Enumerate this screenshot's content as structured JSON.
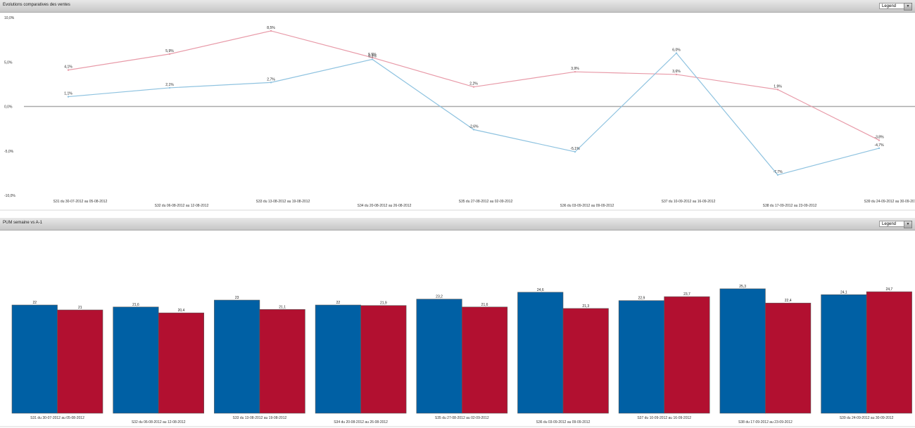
{
  "panels": [
    {
      "title": "Evolutions comparatives des ventes",
      "legend_label": "Legend"
    },
    {
      "title": "PUM semaine vs A-1",
      "legend_label": "Legend"
    }
  ],
  "chart_data": [
    {
      "type": "line",
      "title": "Evolutions comparatives des ventes",
      "categories": [
        "S31 du 30-07-2012 au 05-08-2012",
        "S32 du 06-08-2012 au 12-08-2012",
        "S33 du 13-08-2012 au 19-08-2012",
        "S34 du 20-08-2012 au 26-08-2012",
        "S35 du 27-08-2012 au 02-09-2012",
        "S36 du 03-09-2012 au 09-09-2012",
        "S37 du 10-09-2012 au 16-09-2012",
        "S38 du 17-09-2012 au 23-09-2012",
        "S39 du 24-09-2012 au 30-09-2012"
      ],
      "series": [
        {
          "values": [
            4.1,
            5.9,
            8.5,
            5.5,
            2.2,
            3.9,
            3.6,
            1.9,
            -3.8
          ],
          "labels": [
            "4,1%",
            "5,9%",
            "8,5%",
            "5,5%",
            "2,2%",
            "3,9%",
            "3,6%",
            "1,9%",
            "-3,8%"
          ],
          "color": "#e89aa8"
        },
        {
          "values": [
            1.1,
            2.1,
            2.7,
            5.3,
            -2.6,
            -5.1,
            6.0,
            -7.7,
            -4.7
          ],
          "labels": [
            "1,1%",
            "2,1%",
            "2,7%",
            "5,3%",
            "-2,6%",
            "-5,1%",
            "6,0%",
            "-7,7%",
            "-4,7%"
          ],
          "color": "#8fc3e0"
        }
      ],
      "yticks": [
        10,
        5,
        0,
        -5,
        -10
      ],
      "ytick_labels": [
        "10,0%",
        "5,0%",
        "0,0%",
        "-5,0%",
        "-10,0%"
      ],
      "ylim": [
        -10,
        10
      ],
      "xlabel": "",
      "ylabel": "",
      "zero_line_color": "#aaaaaa"
    },
    {
      "type": "bar",
      "title": "PUM semaine vs A-1",
      "categories": [
        "S31 du 30-07-2012 au 05-08-2012",
        "S32 du 06-08-2012 au 12-08-2012",
        "S33 du 13-08-2012 au 19-08-2012",
        "S34 du 20-08-2012 au 26-08-2012",
        "S35 du 27-08-2012 au 02-09-2012",
        "S36 du 03-09-2012 au 09-09-2012",
        "S37 du 10-09-2012 au 16-09-2012",
        "S38 du 17-09-2012 au 23-09-2012",
        "S39 du 24-09-2012 au 30-09-2012"
      ],
      "series": [
        {
          "values": [
            22,
            21.6,
            23,
            22,
            23.2,
            24.6,
            22.9,
            25.3,
            24.1
          ],
          "labels": [
            "22",
            "21,6",
            "23",
            "22",
            "23,2",
            "24,6",
            "22,9",
            "25,3",
            "24,1"
          ],
          "color": "#0060a4"
        },
        {
          "values": [
            21,
            20.4,
            21.1,
            21.9,
            21.6,
            21.3,
            23.7,
            22.4,
            24.7
          ],
          "labels": [
            "21",
            "20,4",
            "21,1",
            "21,9",
            "21,6",
            "21,3",
            "23,7",
            "22,4",
            "24,7"
          ],
          "color": "#b21030"
        }
      ],
      "ylim": [
        0,
        30
      ],
      "xlabel": "",
      "ylabel": ""
    }
  ]
}
